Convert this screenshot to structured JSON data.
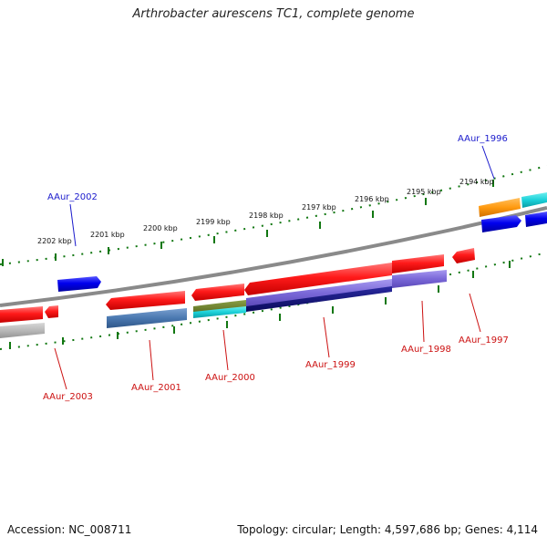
{
  "title": "Arthrobacter aurescens TC1, complete genome",
  "footer": {
    "accession": "Accession: NC_008711",
    "summary": "Topology: circular; Length: 4,597,686 bp; Genes: 4,114"
  },
  "colors": {
    "backbone": "#808080",
    "tick": "#117711",
    "label_forward": "#1a1acc",
    "label_reverse": "#cc1111"
  },
  "ticks": [
    {
      "label": "2194 kbp"
    },
    {
      "label": "2195 kbp"
    },
    {
      "label": "2196 kbp"
    },
    {
      "label": "2197 kbp"
    },
    {
      "label": "2198 kbp"
    },
    {
      "label": "2199 kbp"
    },
    {
      "label": "2200 kbp"
    },
    {
      "label": "2201 kbp"
    },
    {
      "label": "2202 kbp"
    }
  ],
  "gene_labels": {
    "forward": [
      "AAur_1996",
      "AAur_2002"
    ],
    "reverse": [
      "AAur_1997",
      "AAur_1998",
      "AAur_1999",
      "AAur_2000",
      "AAur_2001",
      "AAur_2003"
    ]
  }
}
